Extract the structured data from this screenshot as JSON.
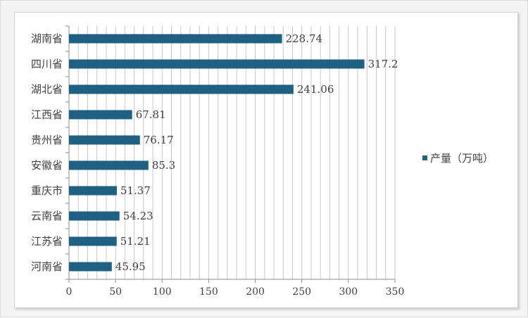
{
  "chart_data": {
    "type": "bar",
    "orientation": "horizontal",
    "categories": [
      "湖南省",
      "四川省",
      "湖北省",
      "江西省",
      "贵州省",
      "安徽省",
      "重庆市",
      "云南省",
      "江苏省",
      "河南省"
    ],
    "series": [
      {
        "name": "产量（万吨）",
        "values": [
          228.74,
          317.2,
          241.06,
          67.81,
          76.17,
          85.3,
          51.37,
          54.23,
          51.21,
          45.95
        ],
        "value_labels": [
          "228.74",
          "317.2",
          "241.06",
          "67.81",
          "76.17",
          "85.3",
          "51.37",
          "54.23",
          "51.21",
          "45.95"
        ],
        "color": "#1f6083"
      }
    ],
    "xlim": [
      0,
      350
    ],
    "xticks": [
      0,
      50,
      100,
      150,
      200,
      250,
      300,
      350
    ],
    "grid": true,
    "legend_position": "right"
  }
}
